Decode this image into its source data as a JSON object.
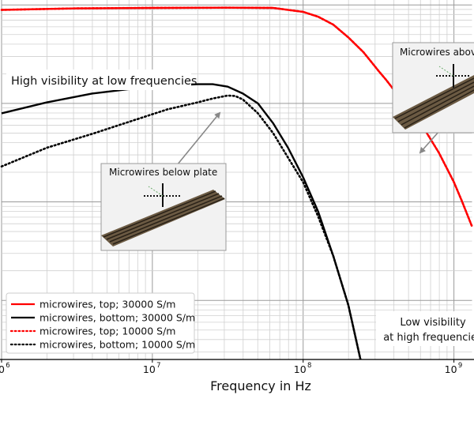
{
  "chart_data": {
    "type": "line",
    "xscale": "log",
    "xlabel": "Frequency in Hz",
    "ylabel": "",
    "xlim_log10": [
      6,
      9.12
    ],
    "ylim_log10": [
      -3.6,
      0.05
    ],
    "x_ticks": [
      {
        "exp": 6,
        "base": "10",
        "sup": "6"
      },
      {
        "exp": 7,
        "base": "10",
        "sup": "7"
      },
      {
        "exp": 8,
        "base": "10",
        "sup": "8"
      },
      {
        "exp": 9,
        "base": "10",
        "sup": "9"
      }
    ],
    "series": [
      {
        "name": "microwires, top; 30000 S/m",
        "color": "#ff0000",
        "style": "solid",
        "points": [
          [
            6.0,
            -0.05
          ],
          [
            6.5,
            -0.035
          ],
          [
            7.0,
            -0.03
          ],
          [
            7.5,
            -0.028
          ],
          [
            7.8,
            -0.03
          ],
          [
            8.0,
            -0.07
          ],
          [
            8.1,
            -0.12
          ],
          [
            8.2,
            -0.2
          ],
          [
            8.3,
            -0.33
          ],
          [
            8.4,
            -0.48
          ],
          [
            8.5,
            -0.67
          ],
          [
            8.55,
            -0.76
          ],
          [
            8.6,
            -0.86
          ],
          [
            8.65,
            -0.995
          ],
          [
            8.7,
            -1.08
          ],
          [
            8.72,
            -1.12
          ],
          [
            8.75,
            -1.17
          ],
          [
            8.8,
            -1.25
          ],
          [
            8.9,
            -1.5
          ],
          [
            9.0,
            -1.8
          ],
          [
            9.05,
            -1.98
          ],
          [
            9.12,
            -2.25
          ]
        ]
      },
      {
        "name": "microwires, bottom; 30000 S/m",
        "color": "#000000",
        "style": "solid",
        "points": [
          [
            6.0,
            -1.1
          ],
          [
            6.3,
            -0.99
          ],
          [
            6.6,
            -0.9
          ],
          [
            6.9,
            -0.845
          ],
          [
            7.1,
            -0.82
          ],
          [
            7.3,
            -0.805
          ],
          [
            7.4,
            -0.805
          ],
          [
            7.5,
            -0.83
          ],
          [
            7.6,
            -0.9
          ],
          [
            7.7,
            -1.0
          ],
          [
            7.8,
            -1.2
          ],
          [
            7.9,
            -1.45
          ],
          [
            8.0,
            -1.75
          ],
          [
            8.1,
            -2.1
          ],
          [
            8.2,
            -2.55
          ],
          [
            8.3,
            -3.05
          ],
          [
            8.38,
            -3.6
          ]
        ]
      },
      {
        "name": "microwires, top; 10000 S/m",
        "color": "#ff0000",
        "style": "dotted",
        "points": [
          [
            6.0,
            -0.05
          ],
          [
            6.5,
            -0.035
          ],
          [
            7.0,
            -0.03
          ],
          [
            7.5,
            -0.028
          ],
          [
            7.8,
            -0.03
          ],
          [
            8.0,
            -0.07
          ],
          [
            8.1,
            -0.12
          ],
          [
            8.2,
            -0.2
          ],
          [
            8.3,
            -0.33
          ],
          [
            8.4,
            -0.48
          ],
          [
            8.5,
            -0.67
          ],
          [
            8.55,
            -0.76
          ],
          [
            8.6,
            -0.86
          ],
          [
            8.65,
            -0.995
          ],
          [
            8.7,
            -1.08
          ],
          [
            8.72,
            -1.12
          ],
          [
            8.75,
            -1.17
          ],
          [
            8.8,
            -1.25
          ],
          [
            8.9,
            -1.5
          ],
          [
            9.0,
            -1.8
          ],
          [
            9.05,
            -1.98
          ],
          [
            9.12,
            -2.25
          ]
        ]
      },
      {
        "name": "microwires, bottom; 10000 S/m",
        "color": "#000000",
        "style": "dotted",
        "points": [
          [
            6.0,
            -1.64
          ],
          [
            6.3,
            -1.45
          ],
          [
            6.6,
            -1.31
          ],
          [
            6.9,
            -1.16
          ],
          [
            7.1,
            -1.06
          ],
          [
            7.3,
            -0.99
          ],
          [
            7.4,
            -0.95
          ],
          [
            7.5,
            -0.92
          ],
          [
            7.55,
            -0.925
          ],
          [
            7.6,
            -0.96
          ],
          [
            7.7,
            -1.1
          ],
          [
            7.8,
            -1.3
          ],
          [
            7.9,
            -1.55
          ],
          [
            8.0,
            -1.8
          ],
          [
            8.1,
            -2.15
          ],
          [
            8.2,
            -2.55
          ],
          [
            8.3,
            -3.05
          ],
          [
            8.38,
            -3.6
          ]
        ]
      }
    ],
    "annotations": {
      "high": "High visibility at low frequencies",
      "low_line1": "Low visibility",
      "low_line2": "at high frequencies",
      "inset_below": "Microwires below plate",
      "inset_above": "Microwires above plate"
    },
    "legend_position": "lower-left",
    "grid": true
  }
}
